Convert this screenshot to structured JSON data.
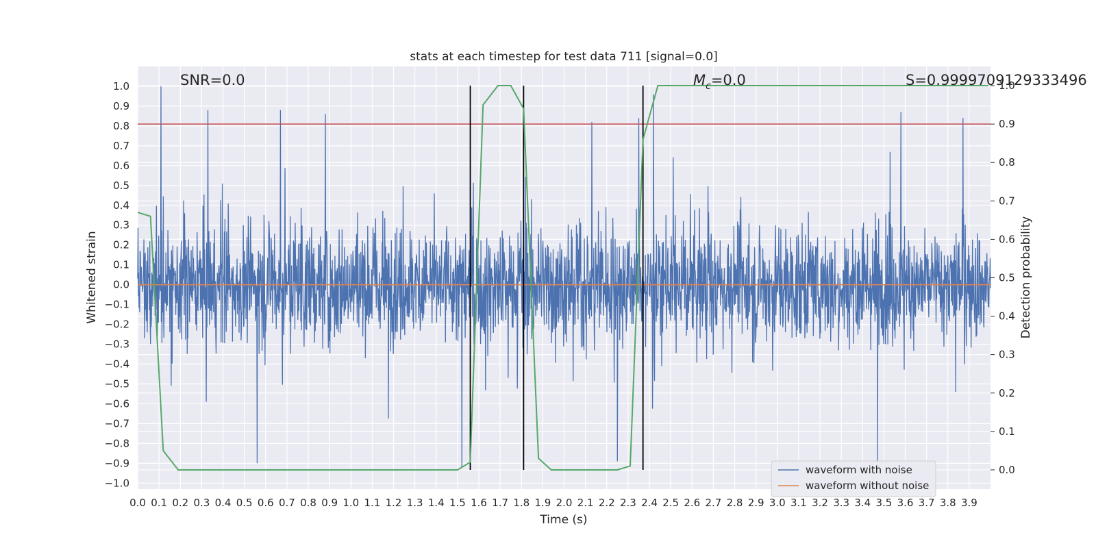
{
  "chart_data": {
    "type": "line",
    "title": "stats at each timestep for test data 711 [signal=0.0]",
    "xlabel": "Time (s)",
    "ylabel_left": "Whitened strain",
    "ylabel_right": "Detection probability",
    "xlim": [
      0.0,
      4.0
    ],
    "ylim_left": [
      -1.03,
      1.1
    ],
    "ylim_right": [
      -0.05,
      1.05
    ],
    "x_ticks": [
      "0.0",
      "0.1",
      "0.2",
      "0.3",
      "0.4",
      "0.5",
      "0.6",
      "0.7",
      "0.8",
      "0.9",
      "1.0",
      "1.1",
      "1.2",
      "1.3",
      "1.4",
      "1.5",
      "1.6",
      "1.7",
      "1.8",
      "1.9",
      "2.0",
      "2.1",
      "2.2",
      "2.3",
      "2.4",
      "2.5",
      "2.6",
      "2.7",
      "2.8",
      "2.9",
      "3.0",
      "3.1",
      "3.2",
      "3.3",
      "3.4",
      "3.5",
      "3.6",
      "3.7",
      "3.8",
      "3.9"
    ],
    "y_ticks_left": [
      "1.0",
      "0.9",
      "0.8",
      "0.7",
      "0.6",
      "0.5",
      "0.4",
      "0.3",
      "0.2",
      "0.1",
      "0.0",
      "−0.1",
      "−0.2",
      "−0.3",
      "−0.4",
      "−0.5",
      "−0.6",
      "−0.7",
      "−0.8",
      "−0.9",
      "−1.0"
    ],
    "y_ticks_right": [
      "1.0",
      "0.9",
      "0.8",
      "0.7",
      "0.6",
      "0.5",
      "0.4",
      "0.3",
      "0.2",
      "0.1",
      "0.0"
    ],
    "grid": true,
    "legend_position": "lower-right",
    "annotations": {
      "snr": "SNR=0.0",
      "mc_symbol": "M",
      "mc_sub": "c",
      "mc_value": "=0.0",
      "s": "S=0.9999709129333496"
    },
    "series": [
      {
        "name": "waveform with noise",
        "axis": "left",
        "color": "#4c72b0",
        "style": "noisy strain, mostly within ±0.5, peaks near 1.0 and -0.9",
        "peaks_x": [
          0.11,
          0.33,
          0.67,
          0.88,
          2.13,
          2.35,
          2.42,
          3.58,
          3.87
        ],
        "peaks_y": [
          1.0,
          0.88,
          0.88,
          0.86,
          0.82,
          0.84,
          0.96,
          0.87,
          0.84
        ],
        "troughs_x": [
          0.56,
          1.52,
          2.25,
          2.37,
          3.47
        ],
        "troughs_y": [
          -0.9,
          -0.92,
          -0.89,
          -0.81,
          -0.9
        ]
      },
      {
        "name": "waveform without noise",
        "axis": "left",
        "color": "#dd8452",
        "x": [
          0.0,
          4.0
        ],
        "y": [
          0.0,
          0.0
        ]
      },
      {
        "axis": "right",
        "color": "#55a868",
        "x": [
          0.0,
          0.06,
          0.12,
          0.19,
          1.5,
          1.56,
          1.62,
          1.69,
          1.75,
          1.81,
          1.88,
          1.94,
          2.25,
          2.31,
          2.37,
          2.44,
          3.99
        ],
        "y": [
          0.67,
          0.66,
          0.05,
          0.0,
          0.0,
          0.02,
          0.95,
          1.0,
          1.0,
          0.94,
          0.03,
          0.0,
          0.0,
          0.01,
          0.86,
          1.0,
          1.0
        ]
      },
      {
        "axis": "right",
        "color": "#c44e52",
        "x": [
          0.0,
          4.0
        ],
        "y": [
          0.9,
          0.9
        ]
      }
    ],
    "vlines_x": [
      1.56,
      1.81,
      2.37
    ],
    "vline_color": "#000000"
  }
}
